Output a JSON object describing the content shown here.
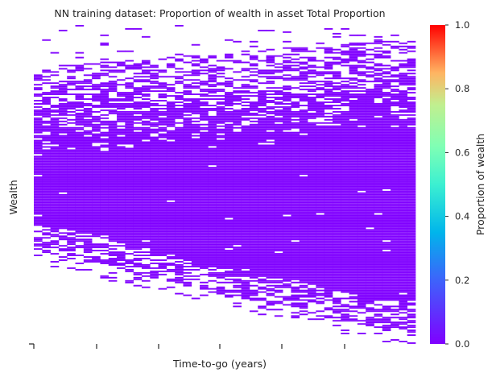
{
  "chart_data": {
    "type": "heatmap",
    "title": "NN training dataset: Proportion of wealth in asset Total Proportion",
    "xlabel": "Time-to-go (years)",
    "ylabel": "Wealth",
    "x_tick_labels": [],
    "y_tick_labels": [],
    "cell_value": 0.0,
    "note_colorbar_range": [
      0.0,
      1.0
    ],
    "colorbar": {
      "label": "Proportion of wealth",
      "colormap": "rainbow",
      "range": [
        0.0,
        1.0
      ],
      "ticks": [
        "0.0",
        "0.2",
        "0.4",
        "0.6",
        "0.8",
        "1.0"
      ],
      "colors": [
        "#8000ff",
        "#00b5eb",
        "#80ffb4",
        "#ffb462",
        "#ff0000"
      ]
    }
  }
}
